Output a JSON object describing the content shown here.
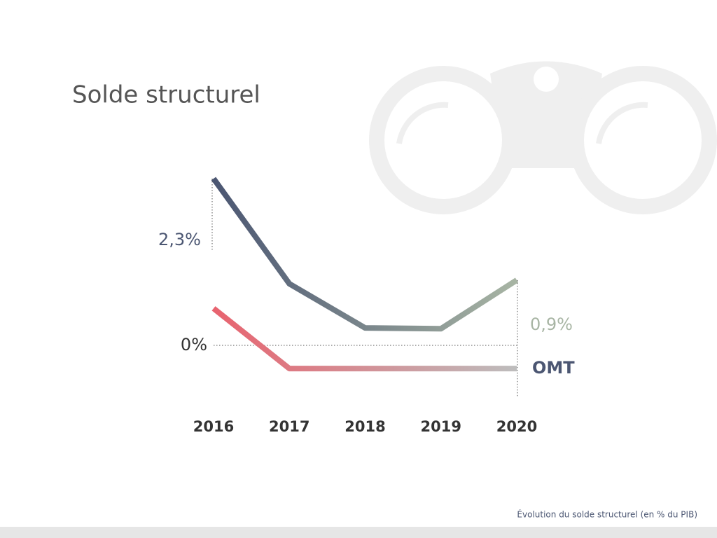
{
  "chart_data": {
    "type": "line",
    "title": "Solde structurel",
    "categories": [
      "2016",
      "2017",
      "2018",
      "2019",
      "2020"
    ],
    "series": [
      {
        "colors": [
          "#4b5672",
          "#a8b5a4"
        ],
        "values": [
          2.3,
          0.85,
          0.24,
          0.23,
          0.9
        ],
        "value_labels": [
          "2,3%",
          null,
          null,
          null,
          "0,9%"
        ]
      },
      {
        "name": "OMT",
        "colors": [
          "#e8636f",
          "#bdbdbd"
        ],
        "values": [
          0.51,
          -0.32,
          -0.32,
          -0.32,
          -0.32
        ]
      }
    ],
    "ylim": [
      -0.7,
      2.5
    ],
    "yticks": [
      {
        "value": 0,
        "label": "0%"
      }
    ],
    "grid": true,
    "footnote": "Évolution du solde structurel (en % du PIB)"
  }
}
